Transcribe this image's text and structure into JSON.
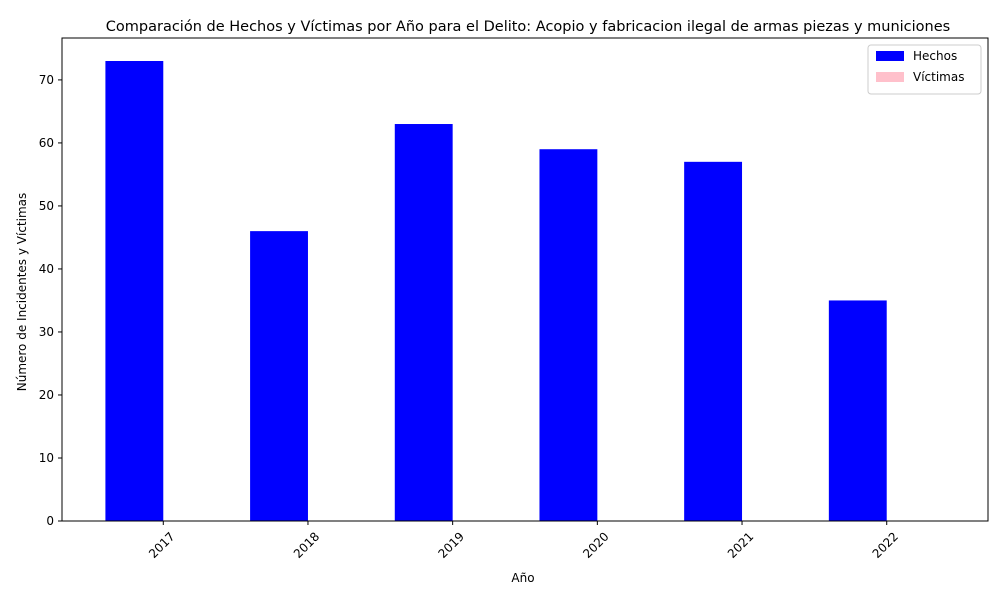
{
  "chart_data": {
    "type": "bar",
    "title": "Comparación de Hechos y Víctimas por Año para el Delito: Acopio y fabricacion ilegal de armas piezas y municiones",
    "xlabel": "Año",
    "ylabel": "Número de Incidentes y Víctimas",
    "categories": [
      "2017",
      "2018",
      "2019",
      "2020",
      "2021",
      "2022"
    ],
    "series": [
      {
        "name": "Hechos",
        "color": "#0000ff",
        "values": [
          73,
          46,
          63,
          59,
          57,
          35
        ]
      },
      {
        "name": "Víctimas",
        "color": "#ffc0cb",
        "values": [
          0,
          0,
          0,
          0,
          0,
          0
        ]
      }
    ],
    "ylim": [
      0,
      76.65
    ],
    "yticks": [
      0,
      10,
      20,
      30,
      40,
      50,
      60,
      70
    ],
    "grid": false,
    "legend_position": "top-right",
    "xtick_rotation": 45
  }
}
